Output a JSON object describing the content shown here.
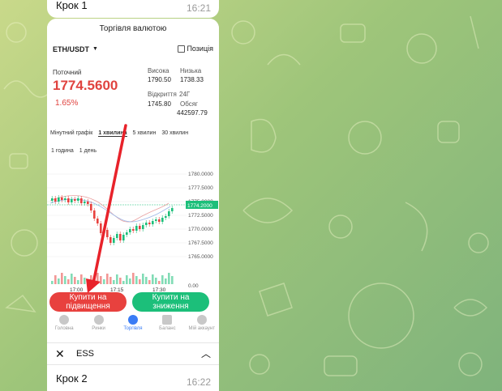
{
  "messages": {
    "top": {
      "caption": "Крок 1",
      "time": "16:21"
    },
    "bottom": {
      "caption": "Крок 2",
      "time": "16:22"
    }
  },
  "app": {
    "title": "Торгівля валютою",
    "pair": "ETH/USDT",
    "position_label": "Позиція",
    "current_label": "Поточний",
    "price": "1774.5600",
    "change": "1.65%",
    "stats": {
      "high_label": "Висока",
      "high": "1790.50",
      "low_label": "Низька",
      "low": "1738.33",
      "open_label": "Відкриття",
      "open": "1745.80",
      "period_label": "24Г",
      "volume_label": "Обсяг",
      "volume": "442597.79"
    },
    "tabs": [
      "Мінутний графік",
      "1 хвилина",
      "5 хвилин",
      "30 хвилин"
    ],
    "subtabs": [
      "1 година",
      "1 день"
    ],
    "buy_label_1": "Купити на",
    "buy_label_2": "підвищення",
    "sell_label_1": "Купити на",
    "sell_label_2": "зниження",
    "nav": [
      "Головна",
      "Ринки",
      "Торгівля",
      "Баланс",
      "Мій аккаунт"
    ]
  },
  "chart_data": {
    "type": "line",
    "y_ticks": [
      "1780.0000",
      "1777.5000",
      "1775.0000",
      "1772.5000",
      "1770.0000",
      "1767.5000",
      "1765.0000",
      "0.00"
    ],
    "current_price_tag": "1774.2000",
    "x_ticks": [
      "17:00",
      "17:15",
      "17:30"
    ]
  },
  "ess": {
    "label": "ESS"
  },
  "colors": {
    "red": "#e8413e",
    "green": "#1cbf7a",
    "accent": "#3a7cf5"
  }
}
